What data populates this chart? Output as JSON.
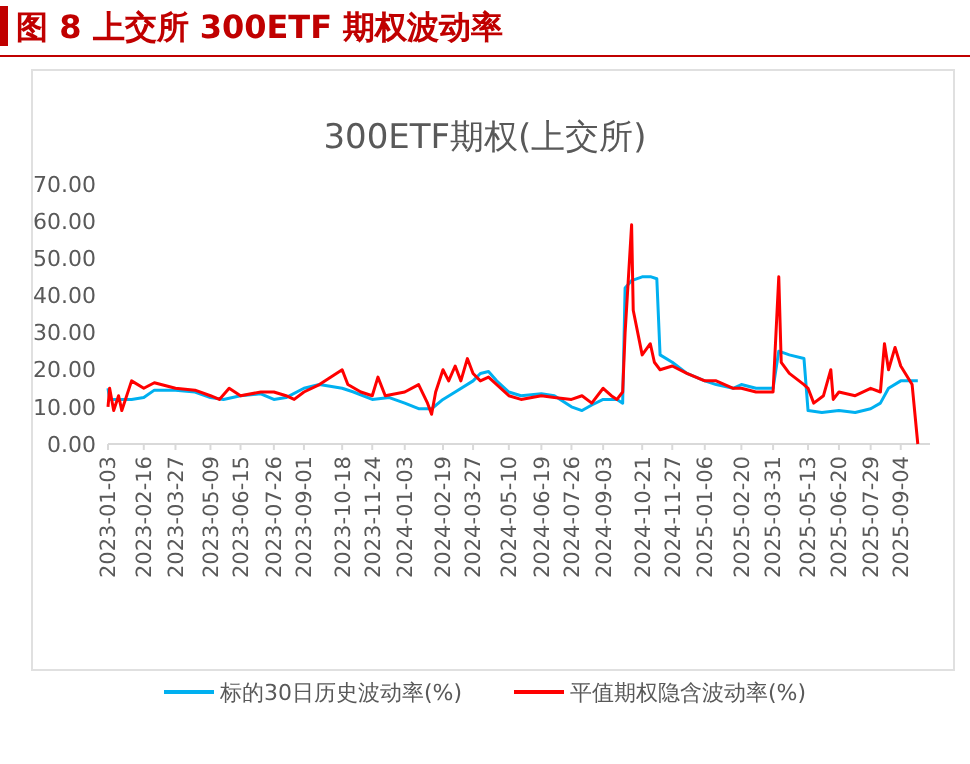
{
  "chart_data": {
    "type": "line",
    "title": "图 8 上交所 300ETF 期权波动率",
    "subtitle": "300ETF期权(上交所)",
    "ylim": [
      0,
      70
    ],
    "yticks": [
      {
        "value": 0,
        "label": "0.00"
      },
      {
        "value": 10,
        "label": "10.00"
      },
      {
        "value": 20,
        "label": "20.00"
      },
      {
        "value": 30,
        "label": "30.00"
      },
      {
        "value": 40,
        "label": "40.00"
      },
      {
        "value": 50,
        "label": "50.00"
      },
      {
        "value": 60,
        "label": "60.00"
      },
      {
        "value": 70,
        "label": "70.00"
      }
    ],
    "xlim": [
      "2023-01-03",
      "2025-10-10"
    ],
    "xticks": [
      "2023-01-03",
      "2023-02-16",
      "2023-03-27",
      "2023-05-09",
      "2023-06-15",
      "2023-07-26",
      "2023-09-01",
      "2023-10-18",
      "2023-11-24",
      "2024-01-03",
      "2024-02-19",
      "2024-03-27",
      "2024-05-10",
      "2024-06-19",
      "2024-07-26",
      "2024-09-03",
      "2024-10-21",
      "2024-11-27",
      "2025-01-06",
      "2025-02-20",
      "2025-03-31",
      "2025-05-13",
      "2025-06-20",
      "2025-07-29",
      "2025-09-04"
    ],
    "grid": false,
    "legend": "bottom",
    "marker": "none",
    "line_style": "solid",
    "series": [
      {
        "name": "标的30日历史波动率(%)",
        "color": "#00b0f0",
        "x": [
          "2023-01-03",
          "2023-01-05",
          "2023-02-01",
          "2023-02-16",
          "2023-03-01",
          "2023-03-27",
          "2023-04-20",
          "2023-05-09",
          "2023-05-25",
          "2023-06-15",
          "2023-07-10",
          "2023-07-26",
          "2023-08-10",
          "2023-09-01",
          "2023-09-20",
          "2023-10-18",
          "2023-11-01",
          "2023-11-24",
          "2023-12-15",
          "2024-01-03",
          "2024-01-20",
          "2024-02-05",
          "2024-02-19",
          "2024-03-05",
          "2024-03-27",
          "2024-04-05",
          "2024-04-15",
          "2024-04-25",
          "2024-05-10",
          "2024-05-25",
          "2024-06-19",
          "2024-07-05",
          "2024-07-26",
          "2024-08-08",
          "2024-08-20",
          "2024-09-03",
          "2024-09-20",
          "2024-09-27",
          "2024-09-30",
          "2024-10-08",
          "2024-10-21",
          "2024-11-01",
          "2024-11-08",
          "2024-11-12",
          "2024-11-27",
          "2024-12-15",
          "2025-01-06",
          "2025-01-20",
          "2025-02-10",
          "2025-02-20",
          "2025-03-10",
          "2025-03-31",
          "2025-04-07",
          "2025-04-20",
          "2025-05-08",
          "2025-05-13",
          "2025-05-30",
          "2025-06-20",
          "2025-07-10",
          "2025-07-29",
          "2025-08-10",
          "2025-08-20",
          "2025-09-04",
          "2025-09-25"
        ],
        "values": [
          15,
          12,
          12,
          12.5,
          14.5,
          14.5,
          14,
          12.5,
          12,
          13,
          13.5,
          12,
          12.5,
          15,
          16,
          15,
          14,
          12,
          12.5,
          11,
          9.5,
          9.5,
          12,
          14,
          17,
          19,
          19.5,
          17,
          14,
          13,
          13.5,
          13,
          10,
          9,
          10.5,
          12,
          12,
          11,
          42,
          44,
          45,
          45,
          44.5,
          24,
          22,
          19,
          17,
          16,
          15,
          16,
          15,
          15,
          25,
          24,
          23,
          9,
          8.5,
          9,
          8.5,
          9.5,
          11,
          15,
          17,
          17
        ]
      },
      {
        "name": "平值期权隐含波动率(%)",
        "color": "#ff0000",
        "x": [
          "2023-01-03",
          "2023-01-05",
          "2023-01-10",
          "2023-01-16",
          "2023-01-20",
          "2023-02-01",
          "2023-02-16",
          "2023-03-01",
          "2023-03-27",
          "2023-04-20",
          "2023-05-09",
          "2023-05-20",
          "2023-06-01",
          "2023-06-15",
          "2023-07-10",
          "2023-07-26",
          "2023-08-10",
          "2023-08-20",
          "2023-09-01",
          "2023-09-20",
          "2023-10-18",
          "2023-10-25",
          "2023-11-10",
          "2023-11-24",
          "2023-12-01",
          "2023-12-10",
          "2024-01-03",
          "2024-01-20",
          "2024-01-31",
          "2024-02-05",
          "2024-02-10",
          "2024-02-19",
          "2024-02-26",
          "2024-03-05",
          "2024-03-12",
          "2024-03-20",
          "2024-03-27",
          "2024-04-05",
          "2024-04-15",
          "2024-05-10",
          "2024-05-25",
          "2024-06-19",
          "2024-07-05",
          "2024-07-26",
          "2024-08-08",
          "2024-08-20",
          "2024-09-03",
          "2024-09-13",
          "2024-09-20",
          "2024-09-27",
          "2024-09-30",
          "2024-10-08",
          "2024-10-10",
          "2024-10-21",
          "2024-10-31",
          "2024-11-05",
          "2024-11-12",
          "2024-11-27",
          "2024-12-15",
          "2025-01-06",
          "2025-01-20",
          "2025-02-10",
          "2025-02-20",
          "2025-03-10",
          "2025-03-31",
          "2025-04-07",
          "2025-04-10",
          "2025-04-20",
          "2025-05-08",
          "2025-05-13",
          "2025-05-20",
          "2025-06-01",
          "2025-06-10",
          "2025-06-13",
          "2025-06-20",
          "2025-07-10",
          "2025-07-29",
          "2025-08-10",
          "2025-08-15",
          "2025-08-20",
          "2025-08-28",
          "2025-09-04",
          "2025-09-18",
          "2025-09-25"
        ],
        "values": [
          10,
          15,
          9,
          13,
          9,
          17,
          15,
          16.5,
          15,
          14.5,
          13,
          12,
          15,
          13,
          14,
          14,
          13,
          12,
          14,
          16,
          20,
          16,
          14,
          13,
          18,
          13,
          14,
          16,
          11,
          8,
          14,
          20,
          17,
          21,
          17,
          23,
          19,
          17,
          18,
          13,
          12,
          13,
          12.5,
          12,
          13,
          11,
          15,
          13,
          12,
          14,
          30,
          59,
          36,
          24,
          27,
          22,
          20,
          21,
          19,
          17,
          17,
          15,
          15,
          14,
          14,
          45,
          22,
          19,
          16,
          15,
          11,
          13,
          20,
          12,
          14,
          13,
          15,
          14,
          27,
          20,
          26,
          21,
          16,
          0
        ]
      }
    ]
  }
}
